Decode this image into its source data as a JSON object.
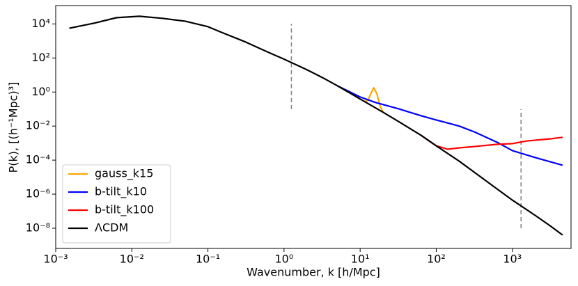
{
  "chart_data": {
    "type": "line",
    "xlabel": "Wavenumber, k [h/Mpc]",
    "ylabel": "P(k), [(h⁻¹Mpc)³]",
    "xscale": "log",
    "yscale": "log",
    "xlim": [
      0.001,
      5900
    ],
    "ylim": [
      6.5e-10,
      120000
    ],
    "xticks": [
      {
        "value": 0.001,
        "label": "10⁻³"
      },
      {
        "value": 0.01,
        "label": "10⁻²"
      },
      {
        "value": 0.1,
        "label": "10⁻¹"
      },
      {
        "value": 1,
        "label": "10⁰"
      },
      {
        "value": 10,
        "label": "10¹"
      },
      {
        "value": 100,
        "label": "10²"
      },
      {
        "value": 1000,
        "label": "10³"
      }
    ],
    "yticks": [
      {
        "value": 1e-08,
        "label": "10⁻⁸"
      },
      {
        "value": 1e-06,
        "label": "10⁻⁶"
      },
      {
        "value": 0.0001,
        "label": "10⁻⁴"
      },
      {
        "value": 0.01,
        "label": "10⁻²"
      },
      {
        "value": 1,
        "label": "10⁰"
      },
      {
        "value": 100,
        "label": "10²"
      },
      {
        "value": 10000,
        "label": "10⁴"
      }
    ],
    "legend": "lower left",
    "series": [
      {
        "name": "gauss_k15",
        "color": "#ffa500",
        "x": [
          11.2,
          12.6,
          13.8,
          15.1,
          16.6,
          18.2,
          20
        ],
        "values": [
          0.269,
          0.316,
          0.794,
          1.78,
          0.794,
          0.158,
          0.0646
        ]
      },
      {
        "name": "b-tilt_k10",
        "color": "#0000ff",
        "x": [
          5.01,
          10,
          15.8,
          31.6,
          63.1,
          100,
          200,
          316,
          631,
          1000,
          2000,
          3160,
          4570
        ],
        "values": [
          2.34,
          0.513,
          0.245,
          0.105,
          0.0407,
          0.0229,
          0.01,
          0.00457,
          0.00112,
          0.000363,
          0.000141,
          7.94e-05,
          5.01e-05
        ]
      },
      {
        "name": "b-tilt_k100",
        "color": "#ff0000",
        "x": [
          63.1,
          100,
          141,
          200,
          316,
          631,
          1000,
          1580,
          3160,
          4570
        ],
        "values": [
          0.00288,
          0.000692,
          0.000437,
          0.000525,
          0.000631,
          0.000851,
          0.000933,
          0.00135,
          0.00178,
          0.00219
        ]
      },
      {
        "name": "ΛCDM",
        "color": "#000000",
        "x": [
          0.00151,
          0.00316,
          0.00631,
          0.0126,
          0.0251,
          0.0501,
          0.1,
          0.158,
          0.316,
          0.631,
          1,
          2,
          3.16,
          5.01,
          10,
          20,
          31.6,
          63.1,
          100,
          200,
          316,
          631,
          1000,
          2000,
          3160,
          4570
        ],
        "values": [
          5620,
          11000,
          23400,
          28200,
          21400,
          14500,
          6900,
          2950,
          851,
          209,
          85.1,
          20.4,
          7.24,
          2.34,
          0.389,
          0.0646,
          0.0191,
          0.00288,
          0.000692,
          8.71e-05,
          1.95e-05,
          2e-06,
          4.47e-07,
          5.62e-08,
          1.35e-08,
          3.98e-09
        ]
      }
    ],
    "vlines": [
      {
        "x": 1.25,
        "y": [
          0.1,
          10000
        ],
        "color": "#808080"
      },
      {
        "x": 1300,
        "y": [
          1e-08,
          0.1
        ],
        "color": "#808080"
      }
    ]
  }
}
